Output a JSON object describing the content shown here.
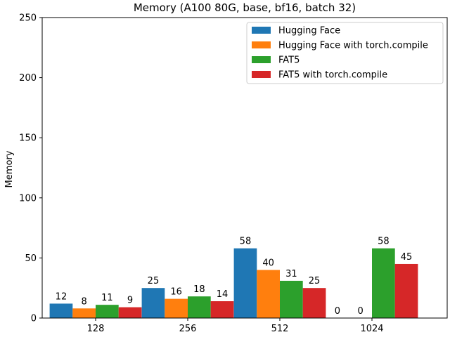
{
  "chart_data": {
    "type": "bar",
    "title": "Memory (A100 80G, base, bf16, batch 32)",
    "xlabel": "",
    "ylabel": "Memory",
    "categories": [
      "128",
      "256",
      "512",
      "1024"
    ],
    "ylim": [
      0,
      250
    ],
    "yticks": [
      "0",
      "50",
      "100",
      "150",
      "200",
      "250"
    ],
    "grid": false,
    "legend_position": "top-right",
    "series": [
      {
        "name": "Hugging Face",
        "color": "#1f77b4",
        "values": [
          12,
          25,
          58,
          0
        ],
        "labels": [
          "12",
          "25",
          "58",
          "0"
        ]
      },
      {
        "name": "Hugging Face with torch.compile",
        "color": "#ff7f0e",
        "values": [
          8,
          16,
          40,
          0
        ],
        "labels": [
          "8",
          "16",
          "40",
          "0"
        ]
      },
      {
        "name": "FAT5",
        "color": "#2ca02c",
        "values": [
          11,
          18,
          31,
          58
        ],
        "labels": [
          "11",
          "18",
          "31",
          "58"
        ]
      },
      {
        "name": "FAT5 with torch.compile",
        "color": "#d62728",
        "values": [
          9,
          14,
          25,
          45
        ],
        "labels": [
          "9",
          "14",
          "25",
          "45"
        ]
      }
    ]
  }
}
